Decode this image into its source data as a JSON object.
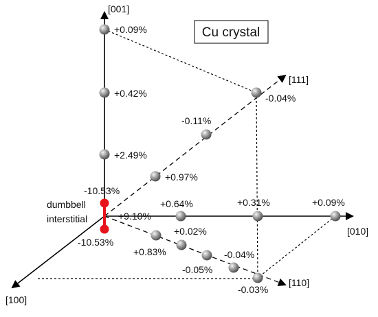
{
  "title": "Cu crystal",
  "axes": {
    "z": "[001]",
    "y": "[010]",
    "x": "[100]",
    "d111": "[111]",
    "d110": "[110]"
  },
  "dumbbell": {
    "label_line1": "dumbbell",
    "label_line2": "interstitial",
    "top_value": "-10.53%",
    "bottom_value": "-10.53%",
    "color": "#e8141b"
  },
  "origin_value": "+9.10%",
  "values": {
    "z1": "+2.49%",
    "z2": "+0.42%",
    "z3": "+0.09%",
    "d111_1": "+0.97%",
    "d111_2": "-0.11%",
    "d111_3": "-0.04%",
    "y1": "+0.64%",
    "y2": "+0.31%",
    "y3": "+0.09%",
    "d110_1": "+0.83%",
    "d110_2": "+0.02%",
    "d110_3": "-0.05%",
    "d110_4": "-0.04%",
    "d110_5": "-0.03%"
  },
  "colors": {
    "atom": "#8a8a8a",
    "line": "#000000"
  }
}
